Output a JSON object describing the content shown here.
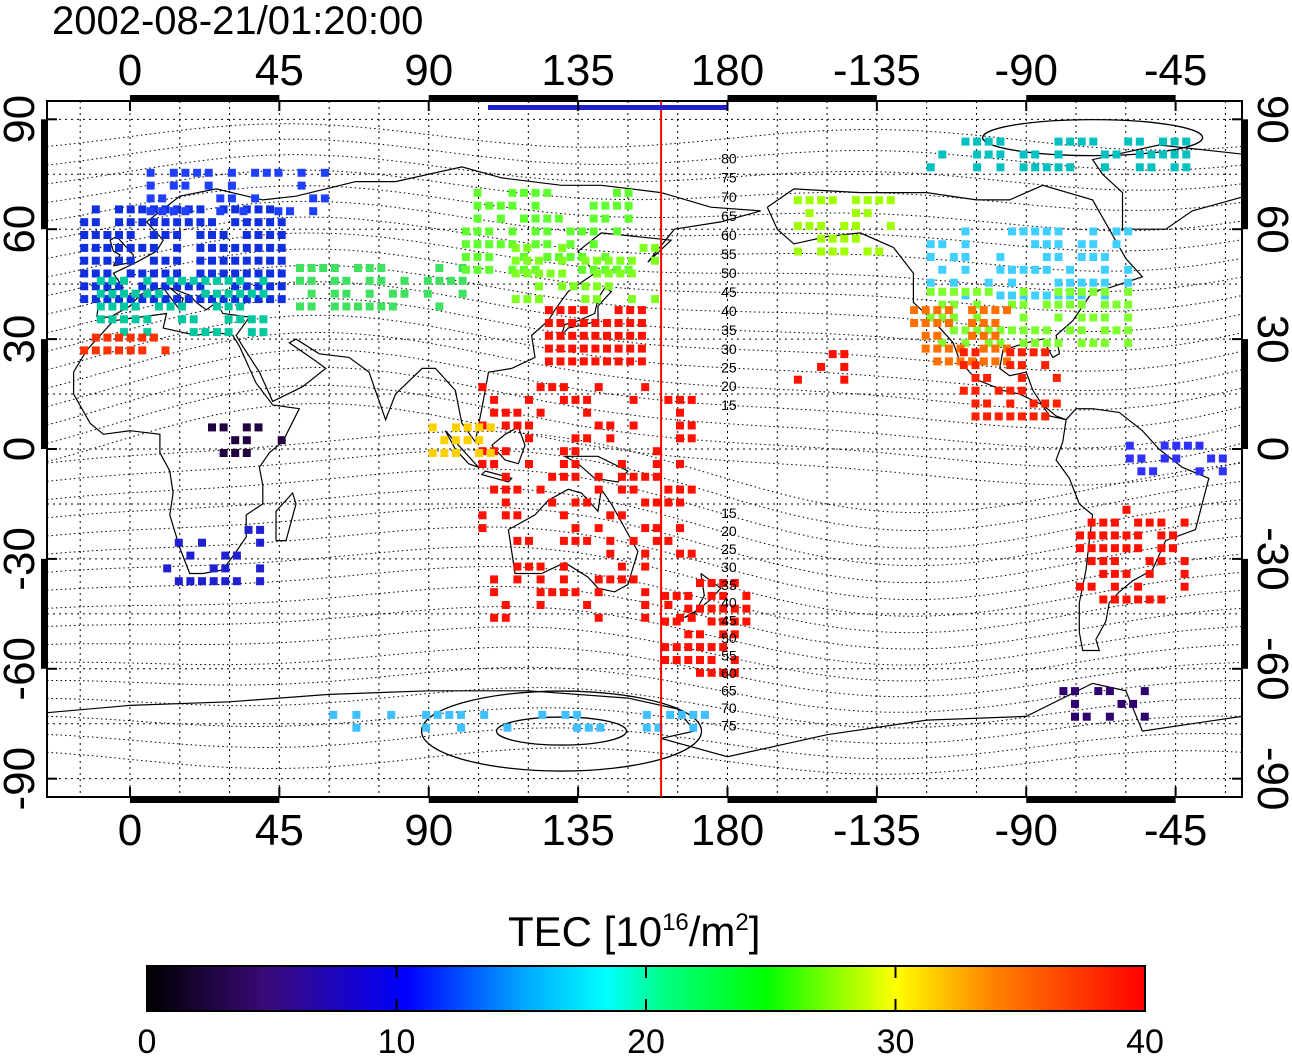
{
  "timestamp": "2002-08-21/01:20:00",
  "top_lon_ticks": [
    "0",
    "45",
    "90",
    "135",
    "180",
    "-135",
    "-90",
    "-45"
  ],
  "bottom_lon_ticks": [
    "0",
    "45",
    "90",
    "135",
    "180",
    "-135",
    "-90",
    "-45"
  ],
  "left_lat_ticks": [
    "90",
    "60",
    "30",
    "0",
    "-30",
    "-60",
    "-90"
  ],
  "right_lat_ticks": [
    "90",
    "60",
    "30",
    "0",
    "-30",
    "-60",
    "-90"
  ],
  "contour_labels_north": [
    "80",
    "75",
    "70",
    "65",
    "60",
    "55",
    "50",
    "45",
    "40",
    "35",
    "30",
    "25",
    "20",
    "15"
  ],
  "contour_labels_south": [
    "15",
    "20",
    "25",
    "30",
    "35",
    "40",
    "45",
    "50",
    "55",
    "60",
    "65",
    "70",
    "75"
  ],
  "colorbar": {
    "title_main": "TEC  [10",
    "title_sup1": "16",
    "title_mid": "/m",
    "title_sup2": "2",
    "title_end": "]",
    "ticks": [
      "0",
      "10",
      "20",
      "30",
      "40"
    ],
    "min": 0,
    "max": 40,
    "colors": [
      "#000000",
      "#3a0a7a",
      "#0000ff",
      "#00ffff",
      "#00ff00",
      "#ffff00",
      "#ff8000",
      "#ff0000"
    ]
  },
  "map": {
    "lon_range": [
      -25,
      335
    ],
    "lat_range": [
      -95,
      95
    ],
    "meridian_marker_lon": 160,
    "meridian_marker_color": "#ff0000",
    "grid": "dotted"
  }
}
